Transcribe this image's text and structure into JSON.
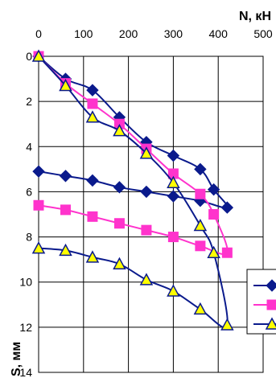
{
  "chart_data": {
    "type": "line",
    "xlabel": "N, кН",
    "ylabel": "S, мм",
    "xlim": [
      0,
      500
    ],
    "ylim": [
      0,
      14
    ],
    "x_ticks": [
      "0",
      "100",
      "200",
      "300",
      "400",
      "500"
    ],
    "y_ticks": [
      "0",
      "2",
      "4",
      "6",
      "8",
      "10",
      "12",
      "14"
    ],
    "grid": true,
    "legend": "right-middle, partially cropped, entries without text",
    "series": [
      {
        "marker": "diamond",
        "color": "#0a1a8c",
        "marker_fill": "#0a1a8c",
        "points": [
          [
            0,
            0
          ],
          [
            60,
            1.0
          ],
          [
            120,
            1.5
          ],
          [
            180,
            2.7
          ],
          [
            240,
            3.8
          ],
          [
            300,
            4.4
          ],
          [
            360,
            5.0
          ],
          [
            390,
            5.9
          ],
          [
            420,
            6.7
          ],
          [
            360,
            6.4
          ],
          [
            300,
            6.2
          ],
          [
            240,
            6.0
          ],
          [
            180,
            5.8
          ],
          [
            120,
            5.5
          ],
          [
            60,
            5.3
          ],
          [
            0,
            5.1
          ]
        ]
      },
      {
        "marker": "square",
        "color": "#ff33cc",
        "marker_fill": "#ff33cc",
        "points": [
          [
            0,
            0
          ],
          [
            60,
            1.2
          ],
          [
            120,
            2.1
          ],
          [
            180,
            3.0
          ],
          [
            240,
            4.1
          ],
          [
            300,
            5.2
          ],
          [
            360,
            6.1
          ],
          [
            390,
            7.0
          ],
          [
            420,
            8.7
          ],
          [
            360,
            8.4
          ],
          [
            300,
            8.0
          ],
          [
            240,
            7.7
          ],
          [
            180,
            7.4
          ],
          [
            120,
            7.1
          ],
          [
            60,
            6.8
          ],
          [
            0,
            6.6
          ]
        ]
      },
      {
        "marker": "triangle",
        "color": "#0a1a8c",
        "marker_fill": "#ffff00",
        "points": [
          [
            0,
            0
          ],
          [
            60,
            1.3
          ],
          [
            120,
            2.7
          ],
          [
            180,
            3.3
          ],
          [
            240,
            4.3
          ],
          [
            300,
            5.6
          ],
          [
            360,
            7.5
          ],
          [
            390,
            8.7
          ],
          [
            420,
            11.9
          ],
          [
            360,
            11.2
          ],
          [
            300,
            10.4
          ],
          [
            240,
            9.9
          ],
          [
            180,
            9.2
          ],
          [
            120,
            8.9
          ],
          [
            60,
            8.6
          ],
          [
            0,
            8.5
          ]
        ]
      }
    ]
  }
}
